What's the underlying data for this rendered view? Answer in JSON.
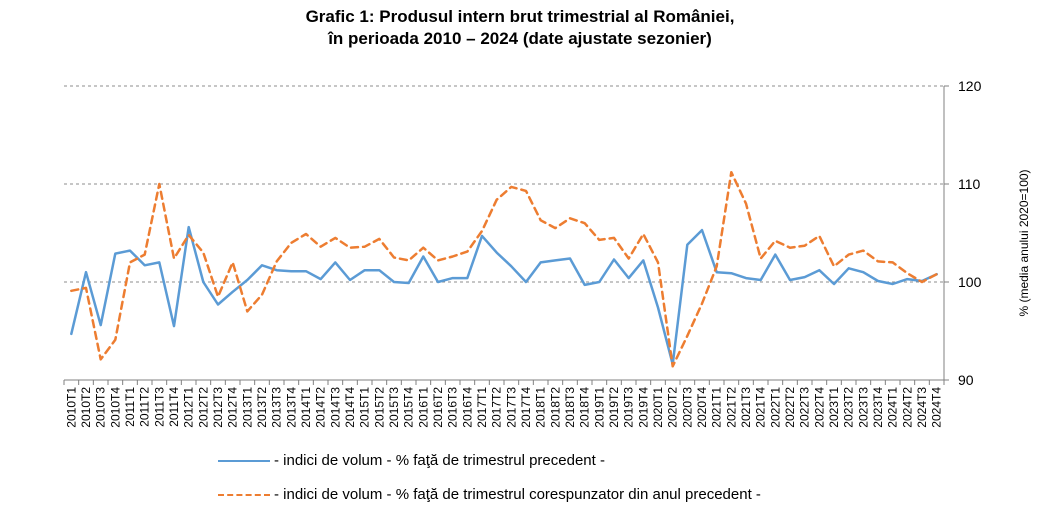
{
  "chart_data": {
    "type": "line",
    "title_line1": "Grafic 1: Produsul intern brut trimestrial al României,",
    "title_line2": "în perioada 2010 – 2024 (date ajustate sezonier)",
    "ylabel": "% (media anului 2020=100)",
    "ylim": [
      90,
      120
    ],
    "yticks": [
      "90",
      "100",
      "110",
      "120"
    ],
    "grid": true,
    "categories": [
      "2010T1",
      "2010T2",
      "2010T3",
      "2010T4",
      "2011T1",
      "2011T2",
      "2011T3",
      "2011T4",
      "2012T1",
      "2012T2",
      "2012T3",
      "2012T4",
      "2013T1",
      "2013T2",
      "2013T3",
      "2013T4",
      "2014T1",
      "2014T2",
      "2014T3",
      "2014T4",
      "2015T1",
      "2015T2",
      "2015T3",
      "2015T4",
      "2016T1",
      "2016T2",
      "2016T3",
      "2016T4",
      "2017T1",
      "2017T2",
      "2017T3",
      "2017T4",
      "2018T1",
      "2018T2",
      "2018T3",
      "2018T4",
      "2019T1",
      "2019T2",
      "2019T3",
      "2019T4",
      "2020T1",
      "2020T2",
      "2020T3",
      "2020T4",
      "2021T1",
      "2021T2",
      "2021T3",
      "2021T4",
      "2022T1",
      "2022T2",
      "2022T3",
      "2022T4",
      "2023T1",
      "2023T2",
      "2023T3",
      "2023T4",
      "2024T1",
      "2024T2",
      "2024T3",
      "2024T4"
    ],
    "series": [
      {
        "name": "- indici de volum - % faţă de trimestrul precedent -",
        "color": "#5b9bd5",
        "style": "solid",
        "values": [
          94.7,
          101.0,
          95.6,
          102.9,
          103.2,
          101.7,
          102.0,
          95.5,
          105.6,
          100.0,
          97.7,
          99.0,
          100.2,
          101.7,
          101.2,
          101.1,
          101.1,
          100.3,
          102.0,
          100.2,
          101.2,
          101.2,
          100.0,
          99.9,
          102.6,
          100.0,
          100.4,
          100.4,
          104.7,
          103.0,
          101.6,
          100.0,
          102.0,
          102.2,
          102.4,
          99.7,
          100.0,
          102.3,
          100.4,
          102.2,
          97.4,
          91.6,
          103.8,
          105.3,
          101.0,
          100.9,
          100.4,
          100.2,
          102.8,
          100.2,
          100.5,
          101.2,
          99.8,
          101.4,
          101.0,
          100.1,
          99.8,
          100.3,
          100.1,
          100.8
        ]
      },
      {
        "name": "- indici de volum - % faţă de trimestrul corespunzator din anul precedent -",
        "color": "#ed7d31",
        "style": "dashed",
        "values": [
          99.1,
          99.4,
          92.1,
          94.1,
          102.0,
          102.8,
          110.0,
          102.4,
          104.8,
          103.0,
          98.5,
          102.0,
          97.0,
          98.7,
          102.1,
          104.0,
          104.9,
          103.6,
          104.5,
          103.5,
          103.6,
          104.4,
          102.5,
          102.2,
          103.5,
          102.2,
          102.6,
          103.1,
          105.2,
          108.4,
          109.7,
          109.3,
          106.3,
          105.5,
          106.5,
          106.0,
          104.3,
          104.5,
          102.4,
          104.9,
          102.0,
          91.4,
          94.5,
          97.8,
          101.6,
          111.2,
          108.0,
          102.4,
          104.2,
          103.5,
          103.7,
          104.7,
          101.6,
          102.8,
          103.2,
          102.1,
          102.0,
          100.9,
          100.0,
          100.8
        ]
      }
    ]
  }
}
